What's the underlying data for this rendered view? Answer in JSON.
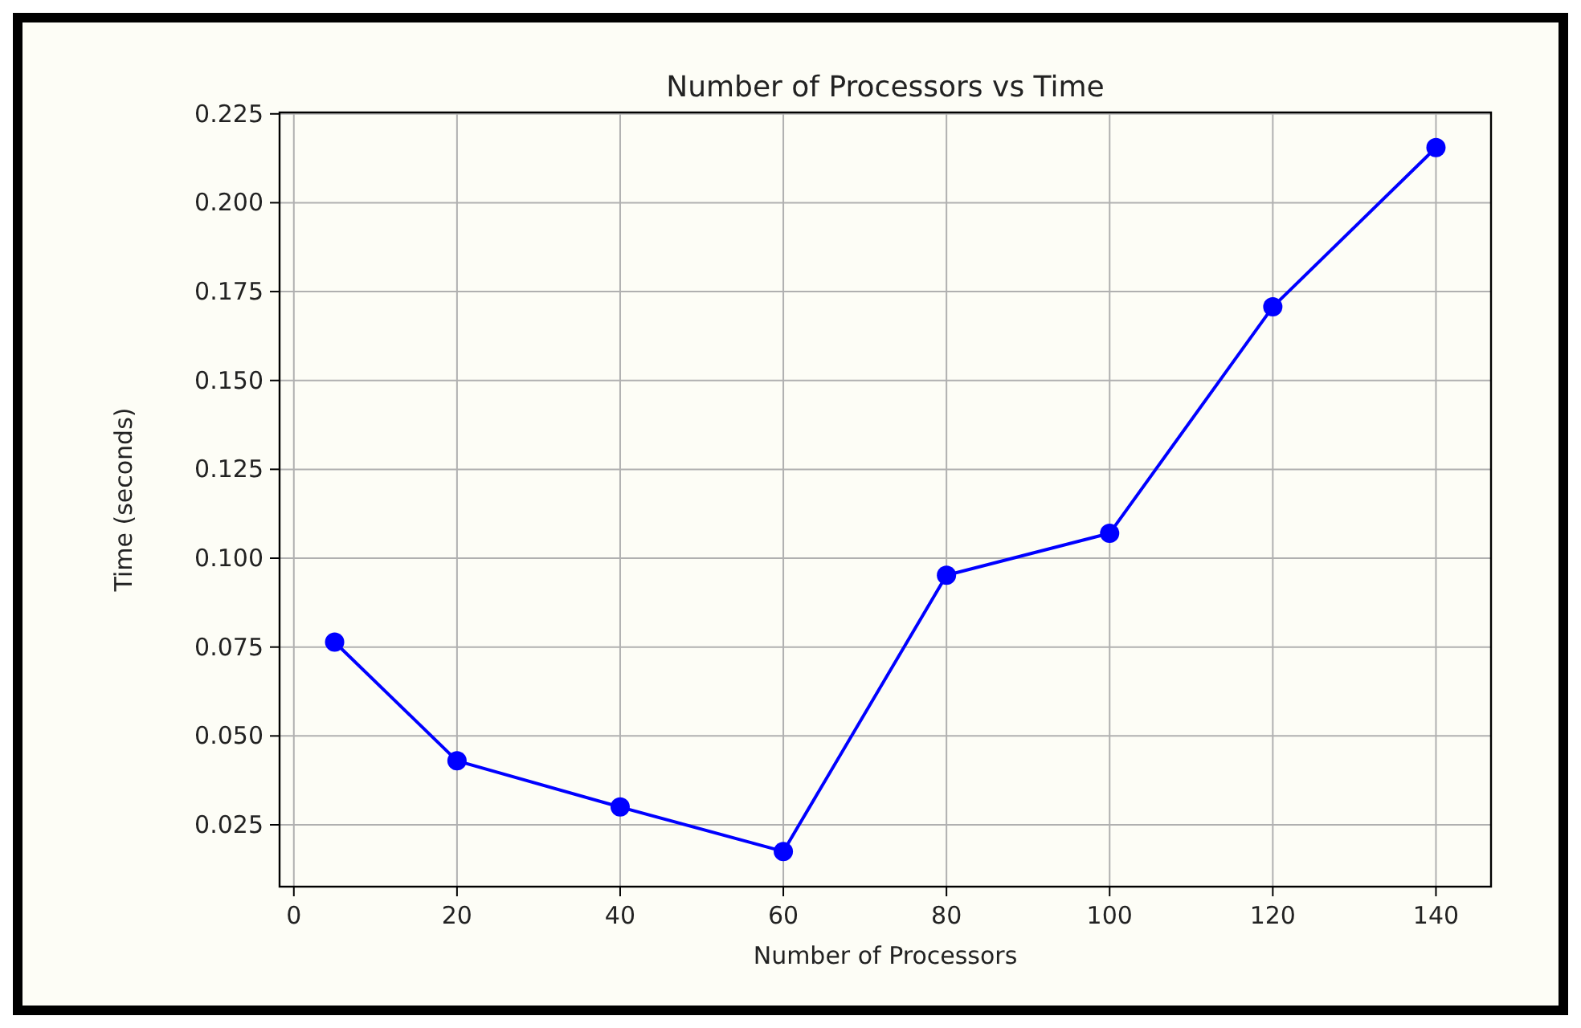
{
  "chart_data": {
    "type": "line",
    "title": "Number of Processors vs Time",
    "xlabel": "Number of Processors",
    "ylabel": "Time (seconds)",
    "x": [
      5,
      20,
      40,
      60,
      80,
      100,
      120,
      140
    ],
    "series": [
      {
        "color": "#0000ff",
        "values": [
          0.0764,
          0.043,
          0.03,
          0.0175,
          0.0952,
          0.107,
          0.1707,
          0.2155
        ]
      }
    ],
    "xlim": [
      -1.75,
      146.75
    ],
    "xticks": [
      0,
      20,
      40,
      60,
      80,
      100,
      120,
      140
    ],
    "ylim": [
      0.0076,
      0.2254
    ],
    "yticks": [
      {
        "value": 0.025,
        "label": "0.025"
      },
      {
        "value": 0.05,
        "label": "0.050"
      },
      {
        "value": 0.075,
        "label": "0.075"
      },
      {
        "value": 0.1,
        "label": "0.100"
      },
      {
        "value": 0.125,
        "label": "0.125"
      },
      {
        "value": 0.15,
        "label": "0.150"
      },
      {
        "value": 0.175,
        "label": "0.175"
      },
      {
        "value": 0.2,
        "label": "0.200"
      },
      {
        "value": 0.225,
        "label": "0.225"
      }
    ],
    "grid": true,
    "marker": "circle",
    "line_style": "solid"
  }
}
